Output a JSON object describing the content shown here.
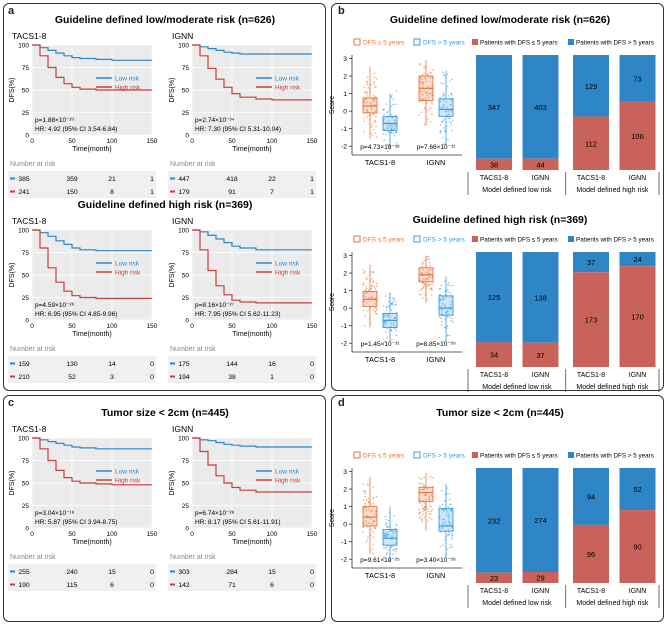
{
  "panels": {
    "a": {
      "label": "a",
      "title1": "Guideline defined low/moderate risk (n=626)",
      "title2": "Guideline defined high risk (n=369)"
    },
    "b": {
      "label": "b",
      "title1": "Guideline defined low/moderate risk (n=626)",
      "title2": "Guideline defined high risk (n=369)"
    },
    "c": {
      "label": "c",
      "title1": "Tumor size < 2cm (n=445)"
    },
    "d": {
      "label": "d",
      "title1": "Tumor size < 2cm (n=445)"
    }
  },
  "colors": {
    "low": "#2f87c8",
    "high": "#c8403a",
    "box_low": "#e8743b",
    "box_high": "#3a9be0",
    "bar_red": "#c8625a",
    "bar_blue": "#2f86c6",
    "grid_bg": "#ebebeb"
  },
  "km_common": {
    "ylabel": "DFS(%)",
    "xlabel": "Time(month)",
    "yticks": [
      "100",
      "75",
      "50",
      "25",
      "0"
    ],
    "xticks": [
      "0",
      "50",
      "100",
      "150"
    ],
    "legend_low": "Low risk",
    "legend_high": "High risk",
    "risk_header": "Number at risk"
  },
  "box_common": {
    "legend_a": "DFS ≤ 5 years",
    "legend_b": "DFS  > 5 years",
    "ylabel": "Score",
    "yticks": [
      "3",
      "2",
      "1",
      "0",
      "-1",
      "-2"
    ],
    "xlabels": [
      "TACS1-8",
      "IGNN"
    ]
  },
  "bar_common": {
    "legend_a": "Patients with DFS ≤ 5 years",
    "legend_b": "Patients with DFS  > 5 years",
    "xlabels": [
      "TACS1-8",
      "IGNN",
      "TACS1-8",
      "IGNN"
    ],
    "group_low": "Model defined low risk",
    "group_high": "Model defined high risk"
  },
  "chart_data": [
    {
      "type": "line",
      "id": "a1",
      "name": "TACS1-8",
      "title": "TACS1-8",
      "xlim": [
        0,
        150
      ],
      "ylim": [
        0,
        100
      ],
      "series": [
        {
          "name": "Low risk",
          "x": [
            0,
            10,
            20,
            30,
            40,
            50,
            60,
            80,
            100,
            120,
            140
          ],
          "y": [
            100,
            97,
            94,
            91,
            88,
            86,
            85,
            84,
            83,
            83,
            83
          ]
        },
        {
          "name": "High risk",
          "x": [
            0,
            10,
            20,
            30,
            40,
            50,
            60,
            80,
            100,
            120,
            140
          ],
          "y": [
            100,
            88,
            75,
            64,
            57,
            53,
            51,
            50,
            50,
            50,
            50
          ]
        }
      ],
      "pvalue": "p=1.88×10⁻²³",
      "hr": "HR: 4.92 (95% CI 3.54-6.84)",
      "risk_low": [
        "385",
        "359",
        "21",
        "1"
      ],
      "risk_high": [
        "241",
        "150",
        "8",
        "1"
      ]
    },
    {
      "type": "line",
      "id": "a2",
      "name": "IGNN",
      "title": "IGNN",
      "xlim": [
        0,
        150
      ],
      "ylim": [
        0,
        100
      ],
      "series": [
        {
          "name": "Low risk",
          "x": [
            0,
            10,
            20,
            30,
            40,
            50,
            60,
            80,
            100,
            120,
            140
          ],
          "y": [
            100,
            98,
            96,
            94,
            92,
            91,
            90,
            90,
            90,
            90,
            90
          ]
        },
        {
          "name": "High risk",
          "x": [
            0,
            10,
            20,
            30,
            40,
            50,
            60,
            80,
            100,
            120,
            140
          ],
          "y": [
            100,
            88,
            74,
            62,
            53,
            46,
            42,
            40,
            39,
            39,
            39
          ]
        }
      ],
      "pvalue": "p=2.74×10⁻³⁴",
      "hr": "HR: 7.30 (95% CI 5.31-10.04)",
      "risk_low": [
        "447",
        "418",
        "22",
        "1"
      ],
      "risk_high": [
        "179",
        "91",
        "7",
        "1"
      ]
    },
    {
      "type": "line",
      "id": "a3",
      "name": "TACS1-8",
      "title": "TACS1-8",
      "xlim": [
        0,
        150
      ],
      "ylim": [
        0,
        100
      ],
      "series": [
        {
          "name": "Low risk",
          "x": [
            0,
            10,
            20,
            30,
            40,
            50,
            60,
            80,
            100,
            120,
            140
          ],
          "y": [
            100,
            97,
            93,
            88,
            84,
            80,
            78,
            77,
            77,
            77,
            77
          ]
        },
        {
          "name": "High risk",
          "x": [
            0,
            10,
            20,
            30,
            40,
            50,
            60,
            80,
            100,
            120,
            140
          ],
          "y": [
            100,
            80,
            58,
            42,
            32,
            27,
            25,
            24,
            24,
            24,
            24
          ]
        }
      ],
      "pvalue": "p=4.59×10⁻²⁶",
      "hr": "HR: 6.95 (95% CI 4.85-9.96)",
      "risk_low": [
        "159",
        "130",
        "14",
        "0"
      ],
      "risk_high": [
        "210",
        "52",
        "3",
        "0"
      ]
    },
    {
      "type": "line",
      "id": "a4",
      "name": "IGNN",
      "title": "IGNN",
      "xlim": [
        0,
        150
      ],
      "ylim": [
        0,
        100
      ],
      "series": [
        {
          "name": "Low risk",
          "x": [
            0,
            10,
            20,
            30,
            40,
            50,
            60,
            80,
            100,
            120,
            140
          ],
          "y": [
            100,
            98,
            94,
            90,
            86,
            82,
            80,
            78,
            78,
            78,
            78
          ]
        },
        {
          "name": "High risk",
          "x": [
            0,
            10,
            20,
            30,
            40,
            50,
            60,
            80,
            100,
            120,
            140
          ],
          "y": [
            100,
            78,
            55,
            38,
            28,
            22,
            20,
            19,
            19,
            19,
            19
          ]
        }
      ],
      "pvalue": "p=8.16×10⁻²⁷",
      "hr": "HR: 7.95 (95% CI 5.62-11.23)",
      "risk_low": [
        "175",
        "144",
        "16",
        "0"
      ],
      "risk_high": [
        "194",
        "38",
        "1",
        "0"
      ]
    },
    {
      "type": "line",
      "id": "c1",
      "name": "TACS1-8",
      "title": "TACS1-8",
      "xlim": [
        0,
        150
      ],
      "ylim": [
        0,
        100
      ],
      "series": [
        {
          "name": "Low risk",
          "x": [
            0,
            10,
            20,
            30,
            40,
            50,
            60,
            80,
            100,
            120,
            140
          ],
          "y": [
            100,
            98,
            96,
            94,
            92,
            90,
            89,
            88,
            88,
            88,
            88
          ]
        },
        {
          "name": "High risk",
          "x": [
            0,
            10,
            20,
            30,
            40,
            50,
            60,
            80,
            100,
            120,
            140
          ],
          "y": [
            100,
            88,
            75,
            64,
            56,
            52,
            50,
            49,
            48,
            48,
            48
          ]
        }
      ],
      "pvalue": "p=3.04×10⁻¹⁸",
      "hr": "HR: 5.87 (95% CI 3.94-8.75)",
      "risk_low": [
        "255",
        "240",
        "15",
        "0"
      ],
      "risk_high": [
        "190",
        "115",
        "6",
        "0"
      ]
    },
    {
      "type": "line",
      "id": "c2",
      "name": "IGNN",
      "title": "IGNN",
      "xlim": [
        0,
        150
      ],
      "ylim": [
        0,
        100
      ],
      "series": [
        {
          "name": "Low risk",
          "x": [
            0,
            10,
            20,
            30,
            40,
            50,
            60,
            80,
            100,
            120,
            140
          ],
          "y": [
            100,
            98,
            97,
            95,
            93,
            92,
            91,
            90,
            90,
            90,
            90
          ]
        },
        {
          "name": "High risk",
          "x": [
            0,
            10,
            20,
            30,
            40,
            50,
            60,
            80,
            100,
            120,
            140
          ],
          "y": [
            100,
            85,
            70,
            58,
            50,
            45,
            42,
            40,
            40,
            40,
            40
          ]
        }
      ],
      "pvalue": "p=6.74×10⁻²⁸",
      "hr": "HR: 8.17 (95% CI 5.61-11.91)",
      "risk_low": [
        "303",
        "284",
        "15",
        "0"
      ],
      "risk_high": [
        "142",
        "71",
        "6",
        "0"
      ]
    },
    {
      "type": "box",
      "id": "b1",
      "ylim": [
        -2.5,
        3.2
      ],
      "groups": [
        {
          "label": "TACS1-8",
          "a": {
            "q1": -0.1,
            "med": 0.3,
            "q3": 0.75,
            "lo": -1.6,
            "hi": 2.5
          },
          "b": {
            "q1": -1.1,
            "med": -0.7,
            "q3": -0.3,
            "lo": -2.2,
            "hi": 1.0
          },
          "pvalue": "p=4.73×10⁻³⁸"
        },
        {
          "label": "IGNN",
          "a": {
            "q1": 0.6,
            "med": 1.3,
            "q3": 2.0,
            "lo": -0.8,
            "hi": 2.9
          },
          "b": {
            "q1": -0.3,
            "med": 0.1,
            "q3": 0.7,
            "lo": -1.9,
            "hi": 2.3
          },
          "pvalue": "p=7.66×10⁻³¹"
        }
      ]
    },
    {
      "type": "bar",
      "id": "b1bar",
      "values_red": [
        38,
        44,
        112,
        106
      ],
      "values_blue": [
        347,
        403,
        129,
        73
      ]
    },
    {
      "type": "box",
      "id": "b2",
      "ylim": [
        -2.5,
        3.2
      ],
      "groups": [
        {
          "label": "TACS1-8",
          "a": {
            "q1": 0.1,
            "med": 0.5,
            "q3": 0.95,
            "lo": -1.1,
            "hi": 2.4
          },
          "b": {
            "q1": -1.1,
            "med": -0.7,
            "q3": -0.3,
            "lo": -1.9,
            "hi": 0.9
          },
          "pvalue": "p=1.45×10⁻³¹"
        },
        {
          "label": "IGNN",
          "a": {
            "q1": 1.5,
            "med": 1.9,
            "q3": 2.3,
            "lo": 0.3,
            "hi": 3.0
          },
          "b": {
            "q1": -0.4,
            "med": 0.0,
            "q3": 0.7,
            "lo": -1.9,
            "hi": 1.8
          },
          "pvalue": "p=8.85×10⁻³⁹"
        }
      ]
    },
    {
      "type": "bar",
      "id": "b2bar",
      "values_red": [
        34,
        37,
        173,
        170
      ],
      "values_blue": [
        125,
        138,
        37,
        24
      ]
    },
    {
      "type": "box",
      "id": "d1",
      "ylim": [
        -2.5,
        3.2
      ],
      "groups": [
        {
          "label": "TACS1-8",
          "a": {
            "q1": -0.1,
            "med": 0.4,
            "q3": 1.0,
            "lo": -1.7,
            "hi": 2.7
          },
          "b": {
            "q1": -1.2,
            "med": -0.8,
            "q3": -0.3,
            "lo": -2.2,
            "hi": 1.0
          },
          "pvalue": "p=9.61×10⁻²⁵"
        },
        {
          "label": "IGNN",
          "a": {
            "q1": 1.3,
            "med": 1.8,
            "q3": 2.1,
            "lo": -0.4,
            "hi": 2.9
          },
          "b": {
            "q1": -0.4,
            "med": -0.1,
            "q3": 0.9,
            "lo": -1.9,
            "hi": 2.3
          },
          "pvalue": "p=3.40×10⁻²⁸"
        }
      ]
    },
    {
      "type": "bar",
      "id": "d1bar",
      "values_red": [
        23,
        29,
        96,
        90
      ],
      "values_blue": [
        232,
        274,
        94,
        52
      ]
    }
  ]
}
